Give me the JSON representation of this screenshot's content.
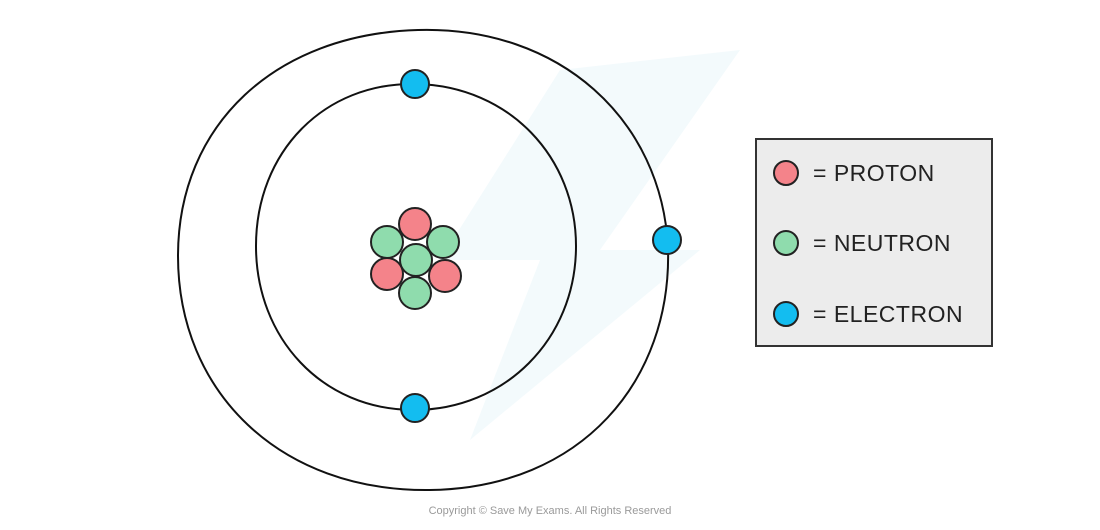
{
  "diagram": {
    "title": "Atom structure: nucleus with protons and neutrons, two electron shells",
    "nucleus": [
      {
        "type": "proton"
      },
      {
        "type": "neutron"
      },
      {
        "type": "neutron"
      },
      {
        "type": "neutron"
      },
      {
        "type": "proton"
      },
      {
        "type": "proton"
      },
      {
        "type": "neutron"
      }
    ],
    "electrons": [
      {
        "shell": "inner",
        "position": "top"
      },
      {
        "shell": "inner",
        "position": "bottom"
      },
      {
        "shell": "outer",
        "position": "right"
      }
    ]
  },
  "legend": {
    "items": [
      {
        "label": "= PROTON",
        "color": "#f4838a"
      },
      {
        "label": "= NEUTRON",
        "color": "#8fdcad"
      },
      {
        "label": "= ELECTRON",
        "color": "#13bdf0"
      }
    ]
  },
  "colors": {
    "proton": "#f4838a",
    "neutron": "#8fdcad",
    "electron": "#13bdf0",
    "outline": "#222222"
  },
  "footer": {
    "copyright": "Copyright © Save My Exams. All Rights Reserved"
  }
}
